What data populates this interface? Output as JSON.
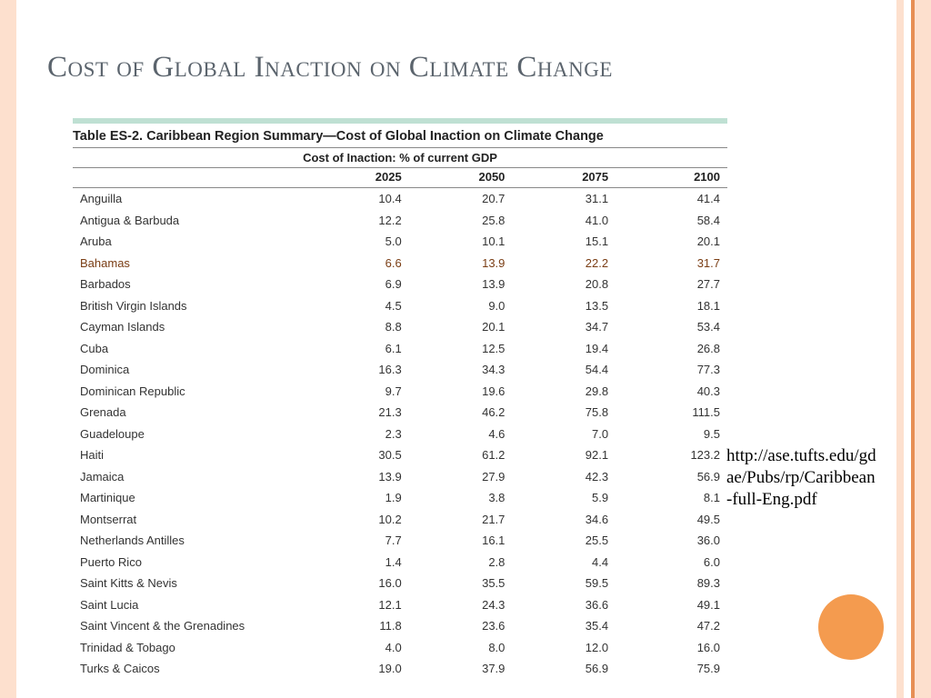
{
  "slide": {
    "title": "Cost of Global Inaction on Climate Change",
    "title_color": "#5b646d",
    "title_fontsize": 33,
    "source_url": "http://ase.tufts.edu/gdae/Pubs/rp/Caribbean-full-Eng.pdf",
    "accent_circle_color": "#f49b4f",
    "border_color": "#fde0ce",
    "stripe_color": "#e78f55"
  },
  "table": {
    "type": "table",
    "caption": "Table ES-2.  Caribbean Region Summary—Cost of Global Inaction on Climate Change",
    "subheading": "Cost of Inaction: % of current GDP",
    "columns": [
      "",
      "2025",
      "2050",
      "2075",
      "2100"
    ],
    "highlight_row_index": 3,
    "highlight_bg": "#f5b98b",
    "highlight_border": "#d06a2a",
    "green_bar_color": "#bfe0d3",
    "font_size": 13,
    "header_font_weight": "bold",
    "rows": [
      {
        "name": "Anguilla",
        "v": [
          "10.4",
          "20.7",
          "31.1",
          "41.4"
        ]
      },
      {
        "name": "Antigua & Barbuda",
        "v": [
          "12.2",
          "25.8",
          "41.0",
          "58.4"
        ]
      },
      {
        "name": "Aruba",
        "v": [
          "5.0",
          "10.1",
          "15.1",
          "20.1"
        ]
      },
      {
        "name": "Bahamas",
        "v": [
          "6.6",
          "13.9",
          "22.2",
          "31.7"
        ]
      },
      {
        "name": "Barbados",
        "v": [
          "6.9",
          "13.9",
          "20.8",
          "27.7"
        ]
      },
      {
        "name": "British Virgin Islands",
        "v": [
          "4.5",
          "9.0",
          "13.5",
          "18.1"
        ]
      },
      {
        "name": "Cayman Islands",
        "v": [
          "8.8",
          "20.1",
          "34.7",
          "53.4"
        ]
      },
      {
        "name": "Cuba",
        "v": [
          "6.1",
          "12.5",
          "19.4",
          "26.8"
        ]
      },
      {
        "name": "Dominica",
        "v": [
          "16.3",
          "34.3",
          "54.4",
          "77.3"
        ]
      },
      {
        "name": "Dominican Republic",
        "v": [
          "9.7",
          "19.6",
          "29.8",
          "40.3"
        ]
      },
      {
        "name": "Grenada",
        "v": [
          "21.3",
          "46.2",
          "75.8",
          "111.5"
        ]
      },
      {
        "name": "Guadeloupe",
        "v": [
          "2.3",
          "4.6",
          "7.0",
          "9.5"
        ]
      },
      {
        "name": "Haiti",
        "v": [
          "30.5",
          "61.2",
          "92.1",
          "123.2"
        ]
      },
      {
        "name": "Jamaica",
        "v": [
          "13.9",
          "27.9",
          "42.3",
          "56.9"
        ]
      },
      {
        "name": "Martinique",
        "v": [
          "1.9",
          "3.8",
          "5.9",
          "8.1"
        ]
      },
      {
        "name": "Montserrat",
        "v": [
          "10.2",
          "21.7",
          "34.6",
          "49.5"
        ]
      },
      {
        "name": "Netherlands Antilles",
        "v": [
          "7.7",
          "16.1",
          "25.5",
          "36.0"
        ]
      },
      {
        "name": "Puerto Rico",
        "v": [
          "1.4",
          "2.8",
          "4.4",
          "6.0"
        ]
      },
      {
        "name": "Saint Kitts & Nevis",
        "v": [
          "16.0",
          "35.5",
          "59.5",
          "89.3"
        ]
      },
      {
        "name": "Saint Lucia",
        "v": [
          "12.1",
          "24.3",
          "36.6",
          "49.1"
        ]
      },
      {
        "name": "Saint Vincent & the Grenadines",
        "v": [
          "11.8",
          "23.6",
          "35.4",
          "47.2"
        ]
      },
      {
        "name": "Trinidad & Tobago",
        "v": [
          "4.0",
          "8.0",
          "12.0",
          "16.0"
        ]
      },
      {
        "name": "Turks & Caicos",
        "v": [
          "19.0",
          "37.9",
          "56.9",
          "75.9"
        ]
      }
    ]
  }
}
